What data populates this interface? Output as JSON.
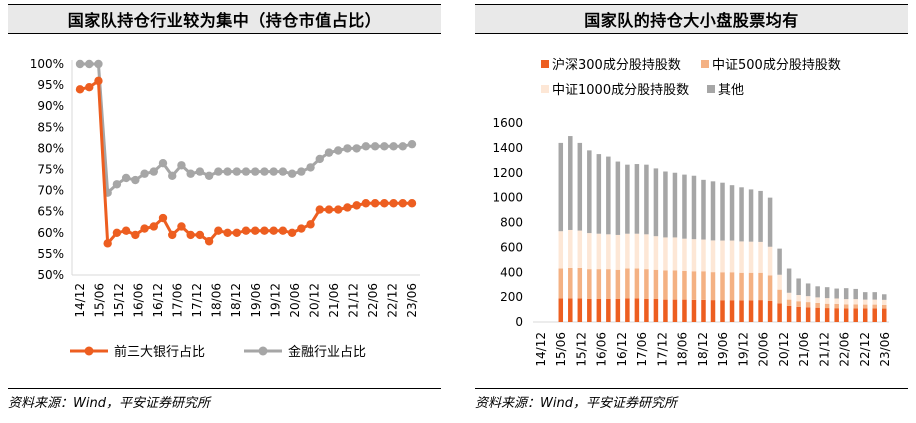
{
  "charts": {
    "left": {
      "title": "国家队持仓行业较为集中（持仓市值占比）",
      "source": "资料来源：Wind，平安证券研究所"
    },
    "right": {
      "title": "国家队的持仓大小盘股票均有",
      "source": "资料来源：Wind，平安证券研究所"
    }
  },
  "chart_data": [
    {
      "type": "line",
      "title": "国家队持仓行业较为集中（持仓市值占比）",
      "ylim": [
        0.5,
        1.0
      ],
      "yticks": [
        "100%",
        "95%",
        "90%",
        "85%",
        "80%",
        "75%",
        "70%",
        "65%",
        "60%",
        "55%",
        "50%"
      ],
      "xticks": [
        "14/12",
        "15/06",
        "15/12",
        "16/06",
        "16/12",
        "17/06",
        "17/12",
        "18/06",
        "18/12",
        "19/06",
        "19/12",
        "20/06",
        "20/12",
        "21/06",
        "21/12",
        "22/06",
        "22/12",
        "23/06"
      ],
      "legend": "bottom",
      "series": [
        {
          "name": "前三大银行占比",
          "color": "#ed5e20",
          "values": [
            0.94,
            0.945,
            0.96,
            0.575,
            0.6,
            0.605,
            0.595,
            0.61,
            0.615,
            0.635,
            0.595,
            0.615,
            0.595,
            0.595,
            0.58,
            0.605,
            0.6,
            0.6,
            0.605,
            0.605,
            0.605,
            0.605,
            0.605,
            0.6,
            0.61,
            0.62,
            0.655,
            0.655,
            0.655,
            0.66,
            0.665,
            0.67,
            0.67,
            0.67,
            0.67,
            0.67,
            0.67
          ]
        },
        {
          "name": "金融行业占比",
          "color": "#a6a6a6",
          "values": [
            1.0,
            1.0,
            1.0,
            0.695,
            0.715,
            0.73,
            0.725,
            0.74,
            0.745,
            0.765,
            0.735,
            0.76,
            0.74,
            0.745,
            0.735,
            0.745,
            0.745,
            0.745,
            0.745,
            0.745,
            0.745,
            0.745,
            0.745,
            0.74,
            0.745,
            0.755,
            0.775,
            0.79,
            0.795,
            0.8,
            0.8,
            0.805,
            0.805,
            0.805,
            0.805,
            0.805,
            0.81
          ]
        }
      ]
    },
    {
      "type": "bar",
      "stacked": true,
      "title": "国家队的持仓大小盘股票均有",
      "ylim": [
        0,
        1600
      ],
      "yticks": [
        "1600",
        "1400",
        "1200",
        "1000",
        "800",
        "600",
        "400",
        "200",
        "0"
      ],
      "xticks": [
        "14/12",
        "15/06",
        "15/12",
        "16/06",
        "16/12",
        "17/06",
        "17/12",
        "18/06",
        "18/12",
        "19/06",
        "19/12",
        "20/06",
        "20/12",
        "21/06",
        "21/12",
        "22/06",
        "22/12",
        "23/06"
      ],
      "legend": "top",
      "series": [
        {
          "name": "沪深300成分股持股数",
          "color": "#ed5e20",
          "values": [
            0,
            0,
            190,
            190,
            190,
            185,
            185,
            185,
            185,
            190,
            190,
            185,
            185,
            180,
            180,
            180,
            178,
            178,
            176,
            175,
            175,
            174,
            174,
            176,
            170,
            150,
            130,
            122,
            118,
            115,
            112,
            111,
            110,
            110,
            110,
            110,
            108
          ]
        },
        {
          "name": "中证500成分股持股数",
          "color": "#f4b183",
          "values": [
            0,
            0,
            240,
            245,
            245,
            240,
            240,
            240,
            235,
            240,
            240,
            240,
            235,
            235,
            235,
            230,
            230,
            230,
            225,
            225,
            225,
            222,
            222,
            220,
            205,
            110,
            50,
            45,
            42,
            38,
            35,
            35,
            32,
            32,
            30,
            30,
            30
          ]
        },
        {
          "name": "中证1000成分股持股数",
          "color": "#fde7d6",
          "values": [
            0,
            0,
            300,
            305,
            300,
            290,
            285,
            280,
            280,
            280,
            280,
            280,
            270,
            265,
            265,
            260,
            258,
            255,
            255,
            255,
            255,
            252,
            250,
            248,
            230,
            120,
            55,
            50,
            48,
            45,
            45,
            43,
            42,
            42,
            40,
            40,
            40
          ]
        },
        {
          "name": "其他",
          "color": "#a6a6a6",
          "values": [
            0,
            0,
            710,
            755,
            705,
            665,
            640,
            625,
            590,
            555,
            560,
            560,
            545,
            530,
            520,
            515,
            510,
            480,
            475,
            465,
            445,
            435,
            420,
            410,
            395,
            210,
            195,
            133,
            102,
            89,
            88,
            80,
            88,
            82,
            60,
            60,
            45
          ]
        }
      ]
    }
  ]
}
